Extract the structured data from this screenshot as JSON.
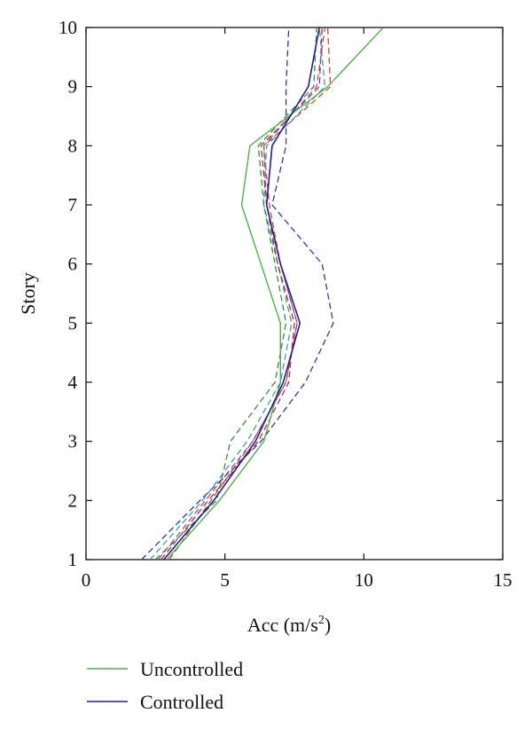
{
  "chart_data": {
    "type": "line",
    "orientation": "x-value-vs-y-story",
    "xlabel": "Acc (m/s",
    "xlabel_sup": "2",
    "xlabel_close": ")",
    "ylabel": "Story",
    "xlim": [
      0,
      15
    ],
    "ylim": [
      1,
      10
    ],
    "xticks": [
      "0",
      "5",
      "10",
      "15"
    ],
    "yticks": [
      "1",
      "2",
      "3",
      "4",
      "5",
      "6",
      "7",
      "8",
      "9",
      "10"
    ],
    "grid": false,
    "legend_position": "bottom-left",
    "stories": [
      1,
      2,
      3,
      4,
      5,
      6,
      7,
      8,
      9,
      10
    ],
    "series": [
      {
        "name": "Uncontrolled",
        "color": "#4daf4a",
        "dash": "solid",
        "width": 1.4,
        "values": [
          2.9,
          4.8,
          6.4,
          7.0,
          7.0,
          6.3,
          5.6,
          5.9,
          8.7,
          10.7
        ]
      },
      {
        "name": "Controlled",
        "color": "#1f1f8a",
        "dash": "solid",
        "width": 1.6,
        "values": [
          2.8,
          4.6,
          6.1,
          7.1,
          7.7,
          7.0,
          6.5,
          6.7,
          8.0,
          8.4
        ]
      },
      {
        "color": "#2a3a9e",
        "dash": "dashed",
        "width": 1.3,
        "values": [
          2.0,
          4.1,
          6.3,
          7.9,
          8.9,
          8.5,
          6.7,
          7.2,
          7.2,
          7.3
        ]
      },
      {
        "color": "#d04a2a",
        "dash": "dashed",
        "width": 1.3,
        "values": [
          3.0,
          4.5,
          6.0,
          7.2,
          7.6,
          7.0,
          6.6,
          6.4,
          8.8,
          8.7
        ]
      },
      {
        "color": "#3aa0a8",
        "dash": "dashed",
        "width": 1.3,
        "values": [
          2.3,
          4.2,
          5.8,
          7.0,
          7.4,
          6.9,
          6.4,
          6.5,
          8.6,
          8.4
        ]
      },
      {
        "color": "#b23030",
        "dash": "dashed",
        "width": 1.3,
        "values": [
          2.7,
          4.4,
          6.2,
          7.3,
          7.5,
          6.9,
          6.5,
          6.3,
          8.4,
          8.5
        ]
      },
      {
        "color": "#3a8a3a",
        "dash": "dashed",
        "width": 1.3,
        "values": [
          2.5,
          4.7,
          5.2,
          6.8,
          7.2,
          6.8,
          6.4,
          6.2,
          8.2,
          8.3
        ]
      },
      {
        "color": "#8a4aa8",
        "dash": "dashed",
        "width": 1.2,
        "values": [
          2.6,
          4.3,
          6.0,
          7.2,
          7.6,
          7.0,
          6.5,
          6.4,
          8.3,
          8.6
        ]
      }
    ]
  }
}
